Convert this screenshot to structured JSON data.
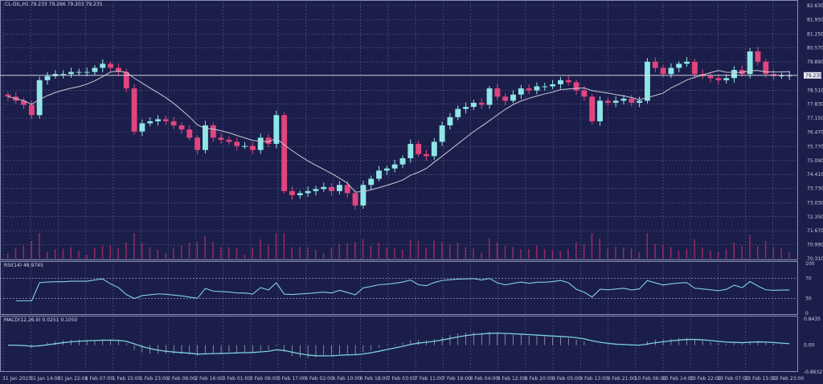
{
  "header": {
    "symbol_line": "CL-OIL,H1  79.233 79.266 79.203 79.235",
    "rsi_label": "RSI(14) 48.9745",
    "macd_label": "MACD(12,26,9) 0.0251 0.1050"
  },
  "colors": {
    "background": "#1b1e4a",
    "grid": "#5a5f8a",
    "bull": "#8fe6e6",
    "bear": "#e0457e",
    "ma": "#c9c9d6",
    "indicator_line": "#7fd0e0",
    "volume": "#c0306a"
  },
  "chart_data": [
    {
      "type": "candlestick",
      "title": "CL-OIL,H1",
      "ylim": [
        70.31,
        82.63
      ],
      "y_ticks": [
        "82.630",
        "81.950",
        "81.250",
        "80.570",
        "79.890",
        "78.510",
        "77.830",
        "77.150",
        "76.470",
        "75.770",
        "75.090",
        "74.410",
        "73.730",
        "73.030",
        "72.350",
        "71.670",
        "70.990",
        "70.310"
      ],
      "current_price": "79.235",
      "x_ticks": [
        "31 Jan 2023",
        "31 Jan 14:00",
        "31 Jan 22:00",
        "1 Feb 07:00",
        "1 Feb 15:00",
        "1 Feb 23:00",
        "2 Feb 08:00",
        "2 Feb 16:00",
        "3 Feb 01:00",
        "3 Feb 09:00",
        "3 Feb 17:00",
        "6 Feb 02:00",
        "6 Feb 10:00",
        "6 Feb 18:00",
        "7 Feb 03:00",
        "7 Feb 11:00",
        "7 Feb 19:00",
        "8 Feb 04:00",
        "8 Feb 12:00",
        "8 Feb 20:00",
        "9 Feb 05:00",
        "9 Feb 13:00",
        "9 Feb 21:00",
        "10 Feb 06:00",
        "10 Feb 14:00",
        "10 Feb 22:00",
        "13 Feb 07:00",
        "13 Feb 15:00",
        "13 Feb 23:00"
      ],
      "closes": [
        78.2,
        78.0,
        77.8,
        77.3,
        79.0,
        79.2,
        79.3,
        79.3,
        79.4,
        79.4,
        79.4,
        79.6,
        79.8,
        79.6,
        79.4,
        78.6,
        76.5,
        76.9,
        77.0,
        77.1,
        77.0,
        76.8,
        76.6,
        76.2,
        75.6,
        76.8,
        76.2,
        76.1,
        76.0,
        75.8,
        75.8,
        75.6,
        76.2,
        75.9,
        77.3,
        73.6,
        73.4,
        73.5,
        73.6,
        73.7,
        73.8,
        73.6,
        73.9,
        73.5,
        72.9,
        73.9,
        74.2,
        74.6,
        74.7,
        74.9,
        75.2,
        75.9,
        75.4,
        75.3,
        76.0,
        76.8,
        77.2,
        77.6,
        77.7,
        77.9,
        77.8,
        78.6,
        78.2,
        78.0,
        78.3,
        78.6,
        78.5,
        78.7,
        78.7,
        78.8,
        79.0,
        78.9,
        78.5,
        78.2,
        77.0,
        78.0,
        77.9,
        78.0,
        78.1,
        77.9,
        78.0,
        79.9,
        79.6,
        79.3,
        79.6,
        79.8,
        79.9,
        79.3,
        79.2,
        79.1,
        79.0,
        79.1,
        79.5,
        79.3,
        80.4,
        79.9,
        79.3,
        79.2,
        79.23,
        79.235
      ],
      "overlays": [
        "moving average"
      ],
      "grid": true
    },
    {
      "type": "line",
      "title": "RSI(14) 48.9745",
      "ylim": [
        0,
        100
      ],
      "y_ticks": [
        "100",
        "70",
        "30",
        "0"
      ],
      "levels": [
        70,
        30
      ]
    },
    {
      "type": "bar+line",
      "title": "MACD(12,26,9) 0.0251 0.1050",
      "ylim": [
        -0.8632,
        0.8435
      ],
      "y_ticks": [
        "0.8435",
        "0.00",
        "-0.8632"
      ]
    }
  ]
}
